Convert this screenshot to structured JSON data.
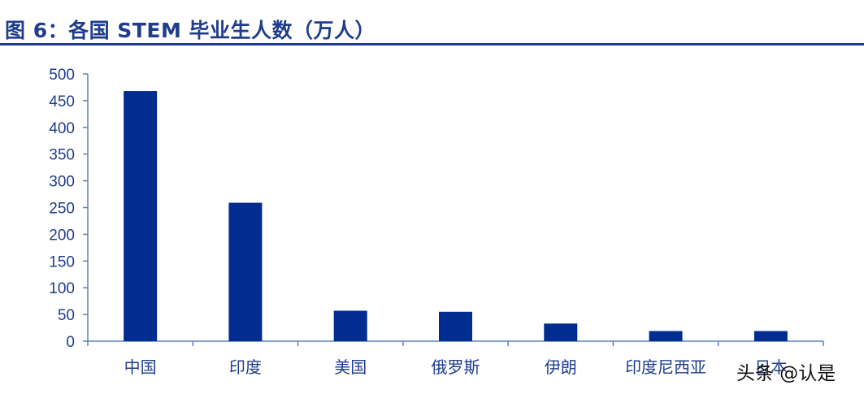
{
  "header": {
    "title": "图 6：各国 STEM 毕业生人数（万人）"
  },
  "watermark": {
    "text": "头条 @认是"
  },
  "chart_data": {
    "type": "bar",
    "title": "图 6：各国 STEM 毕业生人数（万人）",
    "xlabel": "",
    "ylabel": "",
    "categories": [
      "中国",
      "印度",
      "美国",
      "俄罗斯",
      "伊朗",
      "印度尼西亚",
      "日本"
    ],
    "values": [
      468,
      259,
      57,
      55,
      33,
      19,
      19
    ],
    "ylim": [
      0,
      500
    ],
    "yticks": [
      0,
      50,
      100,
      150,
      200,
      250,
      300,
      350,
      400,
      450,
      500
    ],
    "grid": false,
    "legend": "none",
    "bar_color": "#002d8f",
    "axis_color": "#5b7fbf",
    "text_color": "#1f3d8c"
  }
}
